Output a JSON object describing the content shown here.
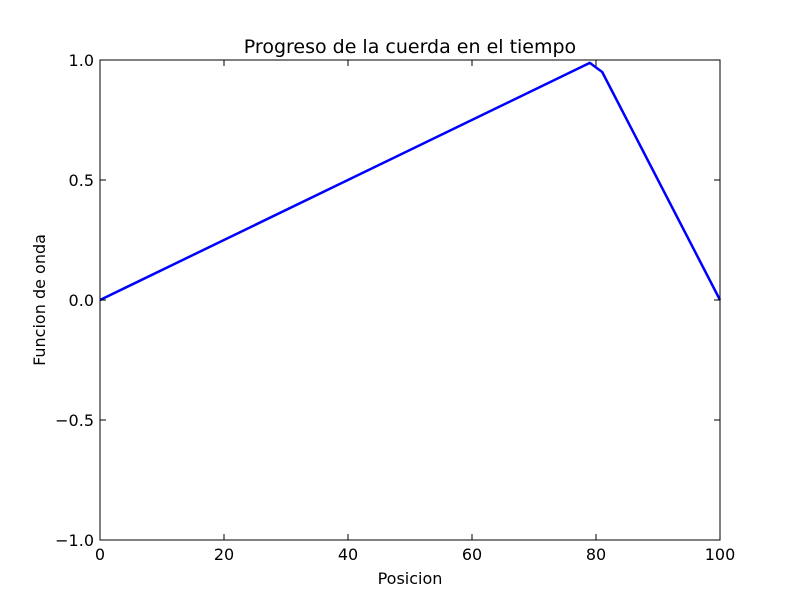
{
  "chart_data": {
    "type": "line",
    "title": "Progreso de la cuerda en el tiempo",
    "xlabel": "Posicion",
    "ylabel": "Funcion de onda",
    "xlim": [
      0,
      100
    ],
    "ylim": [
      -1.0,
      1.0
    ],
    "xticks": [
      0,
      20,
      40,
      60,
      80,
      100
    ],
    "xtick_labels": [
      "0",
      "20",
      "40",
      "60",
      "80",
      "100"
    ],
    "yticks": [
      -1.0,
      -0.5,
      0.0,
      0.5,
      1.0
    ],
    "ytick_labels": [
      "−1.0",
      "−0.5",
      "0.0",
      "0.5",
      "1.0"
    ],
    "grid": false,
    "series": [
      {
        "color": "#0000ff",
        "x": [
          0,
          79,
          81,
          100
        ],
        "y": [
          0.0,
          0.988,
          0.95,
          0.0
        ]
      }
    ]
  }
}
